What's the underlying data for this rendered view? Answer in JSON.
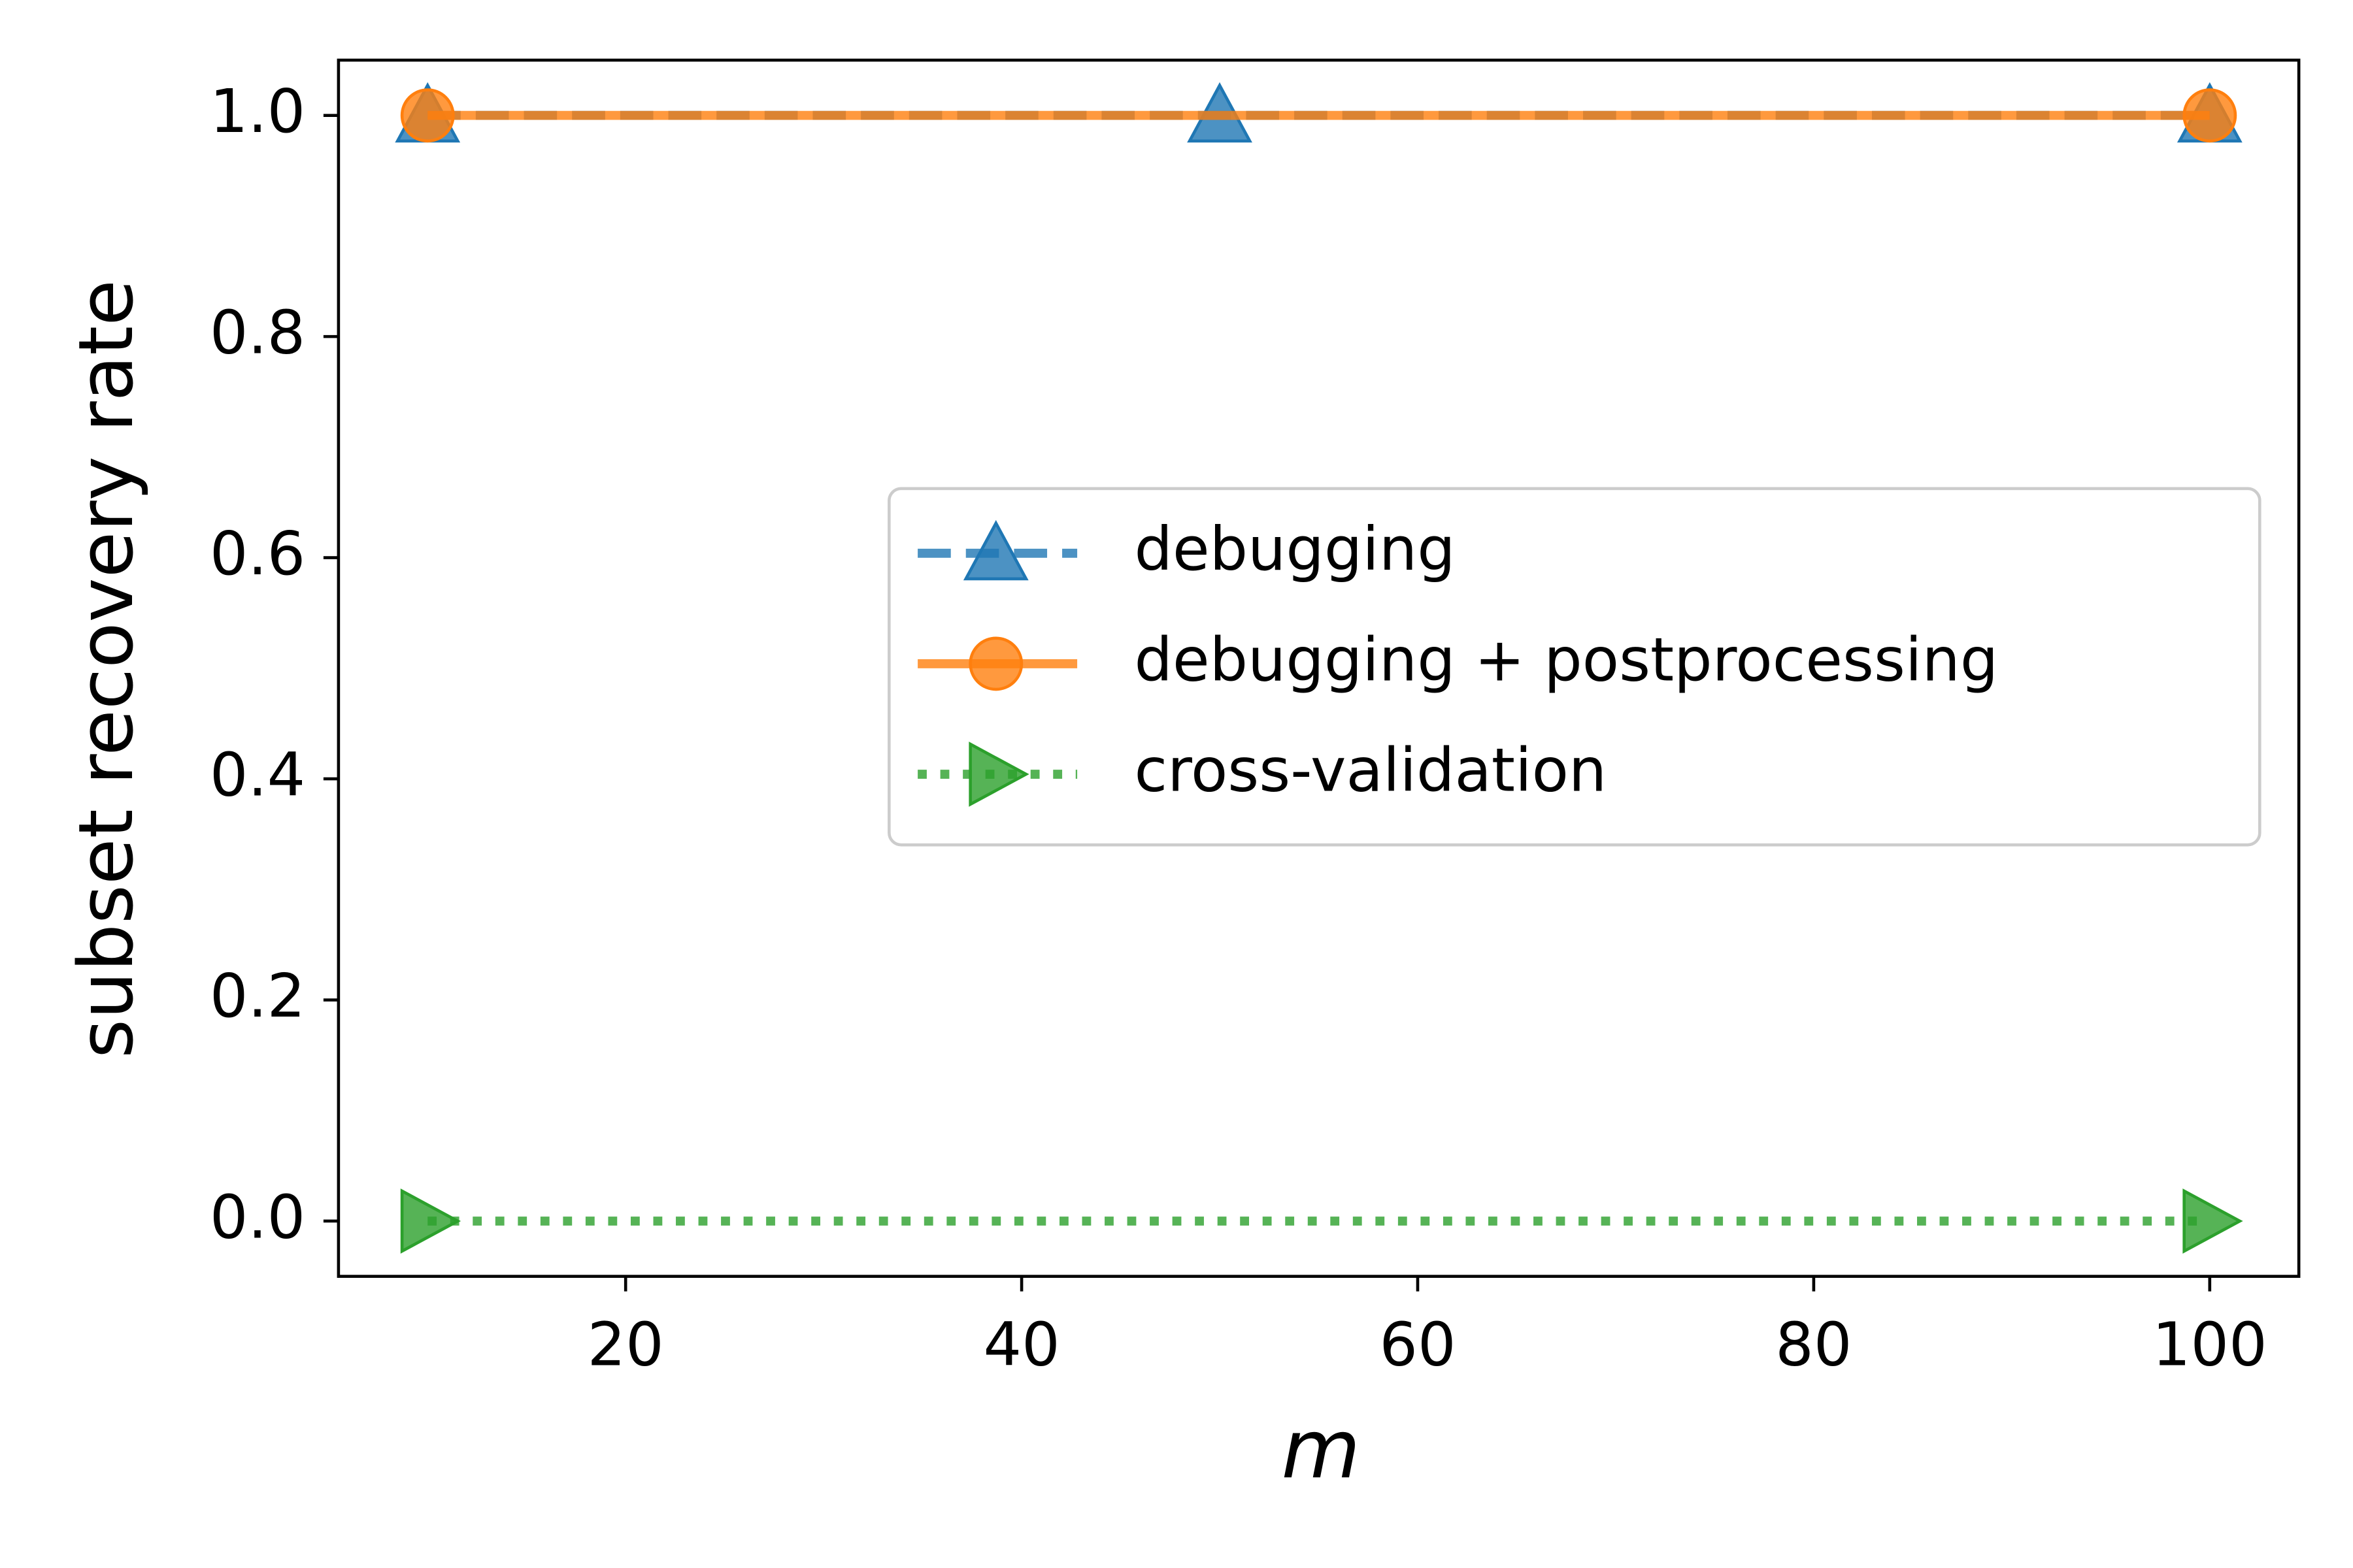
{
  "chart_data": {
    "type": "line",
    "x_label": "m",
    "y_label": "subset recovery rate",
    "xlim": [
      5.5,
      104.5
    ],
    "ylim": [
      -0.05,
      1.05
    ],
    "xticks": [
      20,
      40,
      60,
      80,
      100
    ],
    "yticks": [
      {
        "value": 0,
        "label": "0.0"
      },
      {
        "value": 0.2,
        "label": "0.2"
      },
      {
        "value": 0.4,
        "label": "0.4"
      },
      {
        "value": 0.6,
        "label": "0.6"
      },
      {
        "value": 0.8,
        "label": "0.8"
      },
      {
        "value": 1,
        "label": "1.0"
      }
    ],
    "grid": false,
    "legend": "right",
    "series": [
      {
        "name": "debugging",
        "color": "#1f77b4",
        "line": "dashed",
        "marker": "triangle",
        "x": [
          10,
          50,
          100
        ],
        "values": [
          1,
          1,
          1
        ]
      },
      {
        "name": "debugging + postprocessing",
        "color": "#ff7f0e",
        "line": "solid",
        "marker": "circle",
        "x": [
          10,
          100
        ],
        "values": [
          1,
          1
        ]
      },
      {
        "name": "cross-validation",
        "color": "#2ca02c",
        "line": "dotted",
        "marker": "triangle-right",
        "x": [
          10,
          100
        ],
        "values": [
          0,
          0
        ]
      }
    ]
  }
}
